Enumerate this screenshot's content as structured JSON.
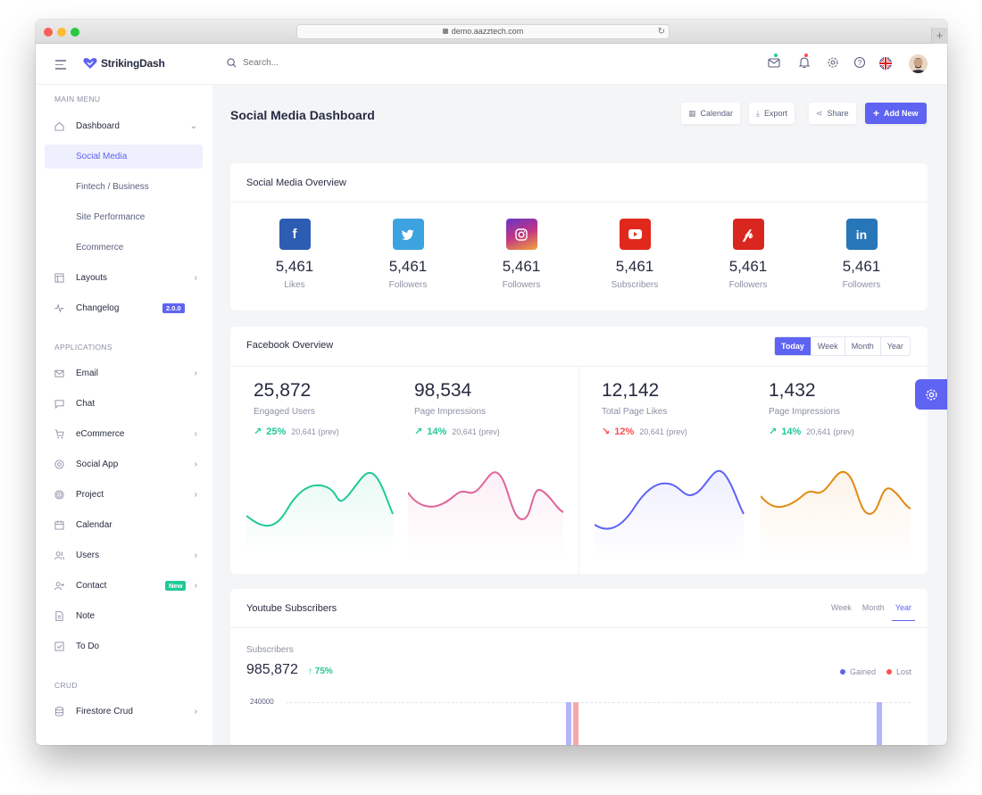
{
  "browser": {
    "url": "demo.aazztech.com"
  },
  "app": {
    "name": "StrikingDash"
  },
  "header": {
    "search_placeholder": "Search..."
  },
  "sidebar": {
    "main_menu_head": "MAIN MENU",
    "applications_head": "APPLICATIONS",
    "crud_head": "CRUD",
    "dashboard": "Dashboard",
    "subs": [
      "Social Media",
      "Fintech / Business",
      "Site Performance",
      "Ecommerce"
    ],
    "layouts": "Layouts",
    "changelog": "Changelog",
    "changelog_tag": "2.0.0",
    "apps": [
      "Email",
      "Chat",
      "eCommerce",
      "Social App",
      "Project",
      "Calendar",
      "Users",
      "Contact",
      "Note",
      "To Do"
    ],
    "contact_tag": "New",
    "firestore": "Firestore Crud"
  },
  "page": {
    "title": "Social Media Dashboard",
    "buttons": {
      "calendar": "Calendar",
      "export": "Export",
      "share": "Share",
      "add_new": "Add New"
    }
  },
  "overview": {
    "title": "Social Media Overview",
    "items": [
      {
        "icon": "f",
        "value": "5,461",
        "label": "Likes",
        "color": "#2c5db3"
      },
      {
        "icon": "t",
        "value": "5,461",
        "label": "Followers",
        "color": "#3da3e0"
      },
      {
        "icon": "i",
        "value": "5,461",
        "label": "Followers",
        "color": "#c13584"
      },
      {
        "icon": "y",
        "value": "5,461",
        "label": "Subscribers",
        "color": "#e0291c"
      },
      {
        "icon": "p",
        "value": "5,461",
        "label": "Followers",
        "color": "#d9261f"
      },
      {
        "icon": "in",
        "value": "5,461",
        "label": "Followers",
        "color": "#2676b8"
      }
    ]
  },
  "facebook": {
    "title": "Facebook Overview",
    "periods": [
      "Today",
      "Week",
      "Month",
      "Year"
    ],
    "stats": [
      {
        "value": "25,872",
        "label": "Engaged Users",
        "change": "25%",
        "prev": "20,641 (prev)",
        "up": true,
        "color": "#20c997"
      },
      {
        "value": "98,534",
        "label": "Page Impressions",
        "change": "14%",
        "prev": "20,641 (prev)",
        "up": true,
        "color": "#e0649b"
      },
      {
        "value": "12,142",
        "label": "Total Page Likes",
        "change": "12%",
        "prev": "20,641 (prev)",
        "up": false,
        "color": "#5f63f2"
      },
      {
        "value": "1,432",
        "label": "Page Impressions",
        "change": "14%",
        "prev": "20,641 (prev)",
        "up": true,
        "color": "#e18a14"
      }
    ]
  },
  "youtube": {
    "title": "Youtube Subscribers",
    "periods": [
      "Week",
      "Month",
      "Year"
    ],
    "subscribers_label": "Subscribers",
    "subscribers_value": "985,872",
    "subscribers_change": "75%",
    "legend": [
      "Gained",
      "Lost"
    ],
    "y_tick": "240000"
  },
  "colors": {
    "accent": "#5f63f2",
    "success": "#20c997",
    "danger": "#ff4d4f"
  }
}
